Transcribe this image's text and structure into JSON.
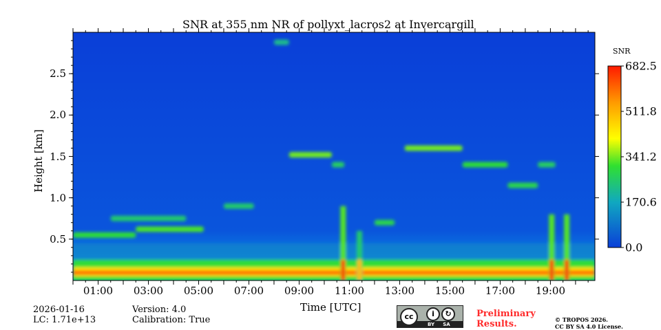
{
  "chart_data": {
    "type": "heatmap",
    "title": "SNR at 355 nm NR of pollyxt_lacros2 at Invercargill",
    "xlabel": "Time [UTC]",
    "ylabel": "Height [km]",
    "xlim_hours": [
      0,
      20.77
    ],
    "ylim_km": [
      0,
      3.0
    ],
    "xticks": [
      "01:00",
      "03:00",
      "05:00",
      "07:00",
      "09:00",
      "11:00",
      "13:00",
      "15:00",
      "17:00",
      "19:00"
    ],
    "xtick_hours": [
      1,
      3,
      5,
      7,
      9,
      11,
      13,
      15,
      17,
      19
    ],
    "yticks": [
      "0.5",
      "1.0",
      "1.5",
      "2.0",
      "2.5"
    ],
    "ytick_values": [
      0.5,
      1.0,
      1.5,
      2.0,
      2.5
    ],
    "colorbar": {
      "label": "SNR",
      "ticks": [
        "0.0",
        "170.6",
        "341.2",
        "511.8",
        "682.5"
      ],
      "range": [
        0,
        682.5
      ]
    },
    "surface_layer": {
      "height_km": 0.1,
      "snr": 600
    },
    "features": [
      {
        "start_h": 0.0,
        "end_h": 2.5,
        "height_km": 0.55,
        "snr": 300
      },
      {
        "start_h": 2.5,
        "end_h": 5.2,
        "height_km": 0.62,
        "snr": 320
      },
      {
        "start_h": 1.5,
        "end_h": 4.5,
        "height_km": 0.75,
        "snr": 250
      },
      {
        "start_h": 6.0,
        "end_h": 7.2,
        "height_km": 0.9,
        "snr": 250
      },
      {
        "start_h": 8.6,
        "end_h": 10.3,
        "height_km": 1.52,
        "snr": 340
      },
      {
        "start_h": 10.3,
        "end_h": 10.8,
        "height_km": 1.4,
        "snr": 260
      },
      {
        "start_h": 12.0,
        "end_h": 12.8,
        "height_km": 0.7,
        "snr": 280
      },
      {
        "start_h": 13.2,
        "end_h": 15.5,
        "height_km": 1.6,
        "snr": 340
      },
      {
        "start_h": 15.5,
        "end_h": 17.3,
        "height_km": 1.4,
        "snr": 300
      },
      {
        "start_h": 17.3,
        "end_h": 18.5,
        "height_km": 1.15,
        "snr": 280
      },
      {
        "start_h": 18.5,
        "end_h": 19.2,
        "height_km": 1.4,
        "snr": 260
      },
      {
        "start_h": 8.0,
        "end_h": 8.6,
        "height_km": 2.88,
        "snr": 220
      }
    ],
    "columns": [
      {
        "hour": 10.75,
        "top_km": 0.9,
        "snr": 650
      },
      {
        "hour": 11.4,
        "top_km": 0.6,
        "snr": 500
      },
      {
        "hour": 19.05,
        "top_km": 0.8,
        "snr": 650
      },
      {
        "hour": 19.65,
        "top_km": 0.8,
        "snr": 650
      }
    ]
  },
  "footer": {
    "date": "2026-01-16",
    "lc": "LC: 1.71e+13",
    "version": "Version: 4.0",
    "calibration": "Calibration: True",
    "preliminary": "Preliminary\nResults.",
    "preliminary_1": "Preliminary",
    "preliminary_2": "Results.",
    "copyright": "© TROPOS 2026.",
    "license": "CC BY SA 4.0 License.",
    "cc_logo_text": "cc BY SA"
  },
  "colors": {
    "low": "#0a3fd8",
    "high": "#ff1a00",
    "preliminary": "#ff2a2a"
  }
}
